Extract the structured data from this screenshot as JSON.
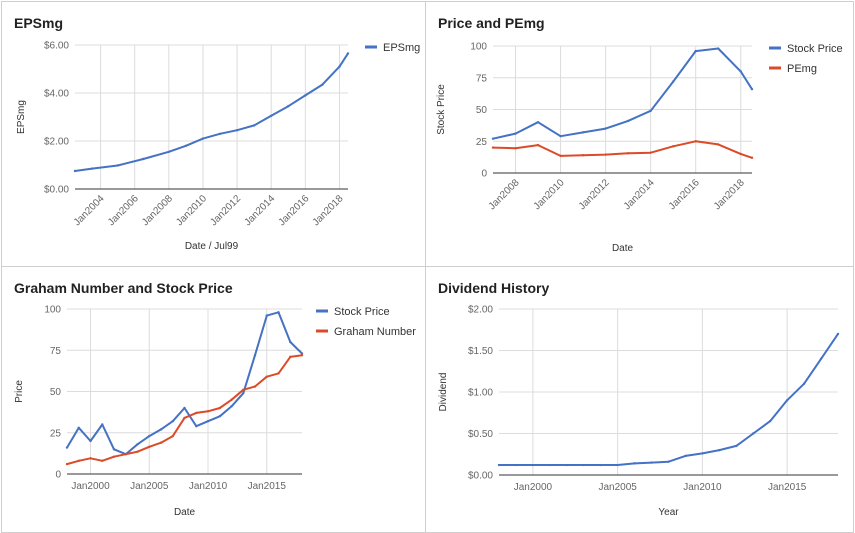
{
  "colors": {
    "blue": "#4472c4",
    "red": "#db4b28",
    "grid": "#dcdcdc",
    "axis": "#333333"
  },
  "chart_data": [
    {
      "type": "line",
      "title": "EPSmg",
      "xlabel": "Date / Jul99",
      "ylabel": "EPSmg",
      "xlim": [
        2002.5,
        2018.5
      ],
      "ylim": [
        0,
        6
      ],
      "yticks": [
        0,
        2,
        4,
        6
      ],
      "ytick_labels": [
        "$0.00",
        "$2.00",
        "$4.00",
        "$6.00"
      ],
      "xticks": [
        2004,
        2006,
        2008,
        2010,
        2012,
        2014,
        2016,
        2018
      ],
      "xtick_labels": [
        "Jan2004",
        "Jan2006",
        "Jan2008",
        "Jan2010",
        "Jan2012",
        "Jan2014",
        "Jan2016",
        "Jan2018"
      ],
      "xtick_rotate": true,
      "grid": true,
      "legend_position": "top-right",
      "series": [
        {
          "name": "EPSmg",
          "color": "#4472c4",
          "x": [
            2002.5,
            2003.5,
            2005,
            2006.5,
            2008,
            2009,
            2010,
            2011,
            2012,
            2013,
            2014,
            2015,
            2016,
            2017,
            2018,
            2018.5
          ],
          "y": [
            0.75,
            0.85,
            0.98,
            1.25,
            1.55,
            1.8,
            2.1,
            2.3,
            2.45,
            2.65,
            3.05,
            3.45,
            3.9,
            4.35,
            5.1,
            5.65
          ]
        }
      ]
    },
    {
      "type": "line",
      "title": "Price and PEmg",
      "xlabel": "Date",
      "ylabel": "Stock Price",
      "xlim": [
        2007,
        2018.5
      ],
      "ylim": [
        0,
        100
      ],
      "yticks": [
        0,
        25,
        50,
        75,
        100
      ],
      "ytick_labels": [
        "0",
        "25",
        "50",
        "75",
        "100"
      ],
      "xticks": [
        2008,
        2010,
        2012,
        2014,
        2016,
        2018
      ],
      "xtick_labels": [
        "Jan2008",
        "Jan2010",
        "Jan2012",
        "Jan2014",
        "Jan2016",
        "Jan2018"
      ],
      "xtick_rotate": true,
      "grid": true,
      "legend_position": "top-right",
      "series": [
        {
          "name": "Stock Price",
          "color": "#4472c4",
          "x": [
            2007,
            2008,
            2009,
            2010,
            2011,
            2012,
            2013,
            2014,
            2015,
            2016,
            2017,
            2018,
            2018.5
          ],
          "y": [
            27,
            31,
            40,
            29,
            32,
            35,
            41,
            49,
            72,
            96,
            98,
            80,
            66
          ]
        },
        {
          "name": "PEmg",
          "color": "#db4b28",
          "x": [
            2007,
            2008,
            2009,
            2010,
            2011,
            2012,
            2013,
            2014,
            2015,
            2016,
            2017,
            2018,
            2018.5
          ],
          "y": [
            20,
            19.5,
            22,
            13.5,
            14,
            14.5,
            15.5,
            16,
            21,
            25,
            22.5,
            15,
            12
          ]
        }
      ]
    },
    {
      "type": "line",
      "title": "Graham Number and Stock Price",
      "xlabel": "Date",
      "ylabel": "Price",
      "xlim": [
        1998,
        2018
      ],
      "ylim": [
        0,
        100
      ],
      "yticks": [
        0,
        25,
        50,
        75,
        100
      ],
      "ytick_labels": [
        "0",
        "25",
        "50",
        "75",
        "100"
      ],
      "xticks": [
        2000,
        2005,
        2010,
        2015
      ],
      "xtick_labels": [
        "Jan2000",
        "Jan2005",
        "Jan2010",
        "Jan2015"
      ],
      "xtick_rotate": false,
      "grid": true,
      "legend_position": "top-right",
      "series": [
        {
          "name": "Stock Price",
          "color": "#4472c4",
          "x": [
            1998,
            1999,
            2000,
            2001,
            2002,
            2003,
            2004,
            2005,
            2006,
            2007,
            2008,
            2009,
            2010,
            2011,
            2012,
            2013,
            2014,
            2015,
            2016,
            2017,
            2018
          ],
          "y": [
            16,
            28,
            20,
            30,
            15,
            12,
            18,
            23,
            27,
            32,
            40,
            29,
            32,
            35,
            41,
            49,
            72,
            96,
            98,
            80,
            73
          ]
        },
        {
          "name": "Graham Number",
          "color": "#db4b28",
          "x": [
            1998,
            1999,
            2000,
            2001,
            2002,
            2003,
            2004,
            2005,
            2006,
            2007,
            2008,
            2009,
            2010,
            2011,
            2012,
            2013,
            2014,
            2015,
            2016,
            2017,
            2018
          ],
          "y": [
            6,
            8,
            9.5,
            8,
            10.5,
            12,
            13.5,
            16.5,
            19,
            23,
            34,
            37,
            38,
            40,
            45,
            51,
            53,
            59,
            61,
            71,
            72
          ]
        }
      ]
    },
    {
      "type": "line",
      "title": "Dividend History",
      "xlabel": "Year",
      "ylabel": "Dividend",
      "xlim": [
        1998,
        2018
      ],
      "ylim": [
        0,
        2
      ],
      "yticks": [
        0,
        0.5,
        1,
        1.5,
        2
      ],
      "ytick_labels": [
        "$0.00",
        "$0.50",
        "$1.00",
        "$1.50",
        "$2.00"
      ],
      "xticks": [
        2000,
        2005,
        2010,
        2015
      ],
      "xtick_labels": [
        "Jan2000",
        "Jan2005",
        "Jan2010",
        "Jan2015"
      ],
      "xtick_rotate": false,
      "grid": true,
      "legend_position": "none",
      "series": [
        {
          "color": "#4472c4",
          "x": [
            1998,
            1999,
            2000,
            2001,
            2002,
            2003,
            2004,
            2005,
            2006,
            2007,
            2008,
            2009,
            2010,
            2011,
            2012,
            2013,
            2014,
            2015,
            2016,
            2017,
            2018
          ],
          "y": [
            0.12,
            0.12,
            0.12,
            0.12,
            0.12,
            0.12,
            0.12,
            0.12,
            0.14,
            0.15,
            0.16,
            0.23,
            0.26,
            0.3,
            0.35,
            0.5,
            0.65,
            0.9,
            1.1,
            1.4,
            1.7
          ]
        }
      ]
    }
  ]
}
